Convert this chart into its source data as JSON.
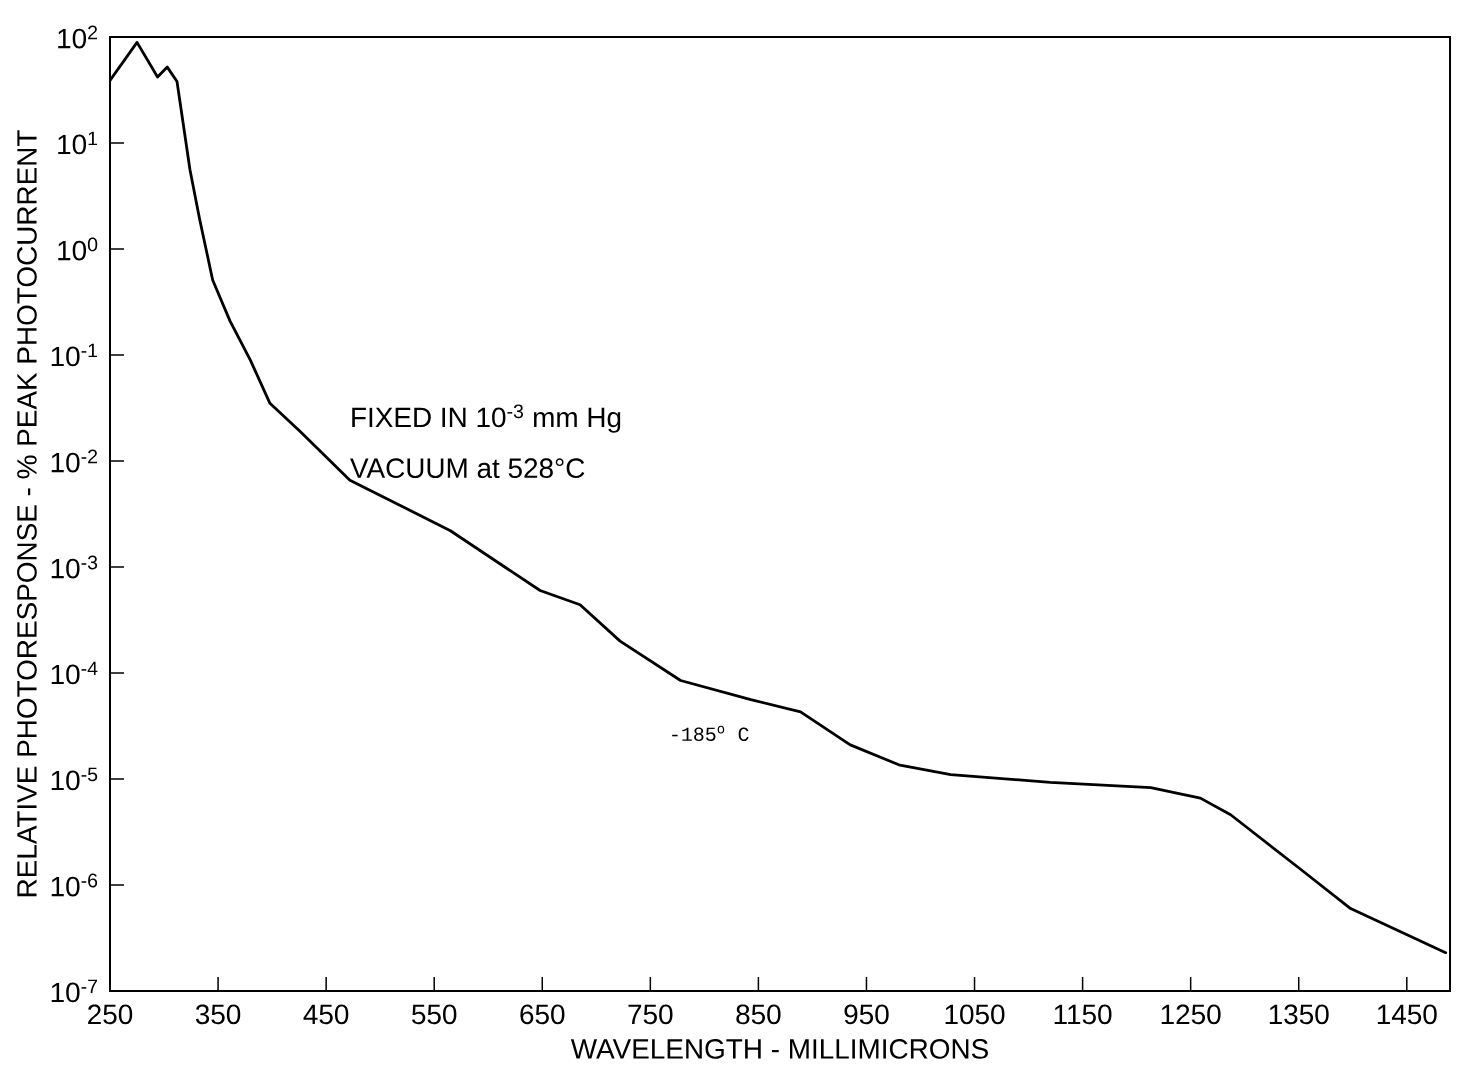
{
  "chart_data": {
    "type": "line",
    "xlabel": "WAVELENGTH - MILLIMICRONS",
    "ylabel": "RELATIVE PHOTORESPONSE - % PEAK PHOTOCURRENT",
    "annotations": [
      "FIXED IN 10$^{-3}$ mm Hg",
      "VACUUM at 528°C",
      "-185$^{o}$ C"
    ],
    "log": "y",
    "xlim": [
      250,
      1490
    ],
    "ylim": [
      1e-07,
      100
    ],
    "xticks": [
      250,
      350,
      450,
      550,
      650,
      750,
      850,
      950,
      1050,
      1150,
      1250,
      1350,
      1450
    ],
    "yticks": [
      {
        "value": 100,
        "label": "10$^{2}$"
      },
      {
        "value": 10,
        "label": "10$^{1}$"
      },
      {
        "value": 1,
        "label": "10$^{0}$"
      },
      {
        "value": 0.1,
        "label": "10$^{-1}$"
      },
      {
        "value": 0.01,
        "label": "10$^{-2}$"
      },
      {
        "value": 0.001,
        "label": "10$^{-3}$"
      },
      {
        "value": 0.0001,
        "label": "10$^{-4}$"
      },
      {
        "value": 1e-05,
        "label": "10$^{-5}$"
      },
      {
        "value": 1e-06,
        "label": "10$^{-6}$"
      },
      {
        "value": 1e-07,
        "label": "10$^{-7}$"
      }
    ],
    "series": [
      {
        "color": "#000000",
        "x": [
          250,
          275,
          294,
          303,
          312,
          324,
          333,
          345,
          361,
          380,
          398,
          426,
          472,
          565,
          648,
          685,
          722,
          778,
          843,
          889,
          935,
          981,
          1028,
          1120,
          1213,
          1259,
          1287,
          1352,
          1398,
          1486
        ],
        "values": [
          39,
          89,
          42,
          52,
          38,
          5.6,
          1.9,
          0.51,
          0.21,
          0.089,
          0.035,
          0.019,
          0.0066,
          0.0022,
          0.0006,
          0.00044,
          0.0002,
          8.5e-05,
          5.6e-05,
          4.3e-05,
          2.1e-05,
          1.35e-05,
          1.1e-05,
          9.3e-06,
          8.3e-06,
          6.6e-06,
          4.6e-06,
          1.4e-06,
          6e-07,
          2.3e-07
        ]
      }
    ]
  }
}
